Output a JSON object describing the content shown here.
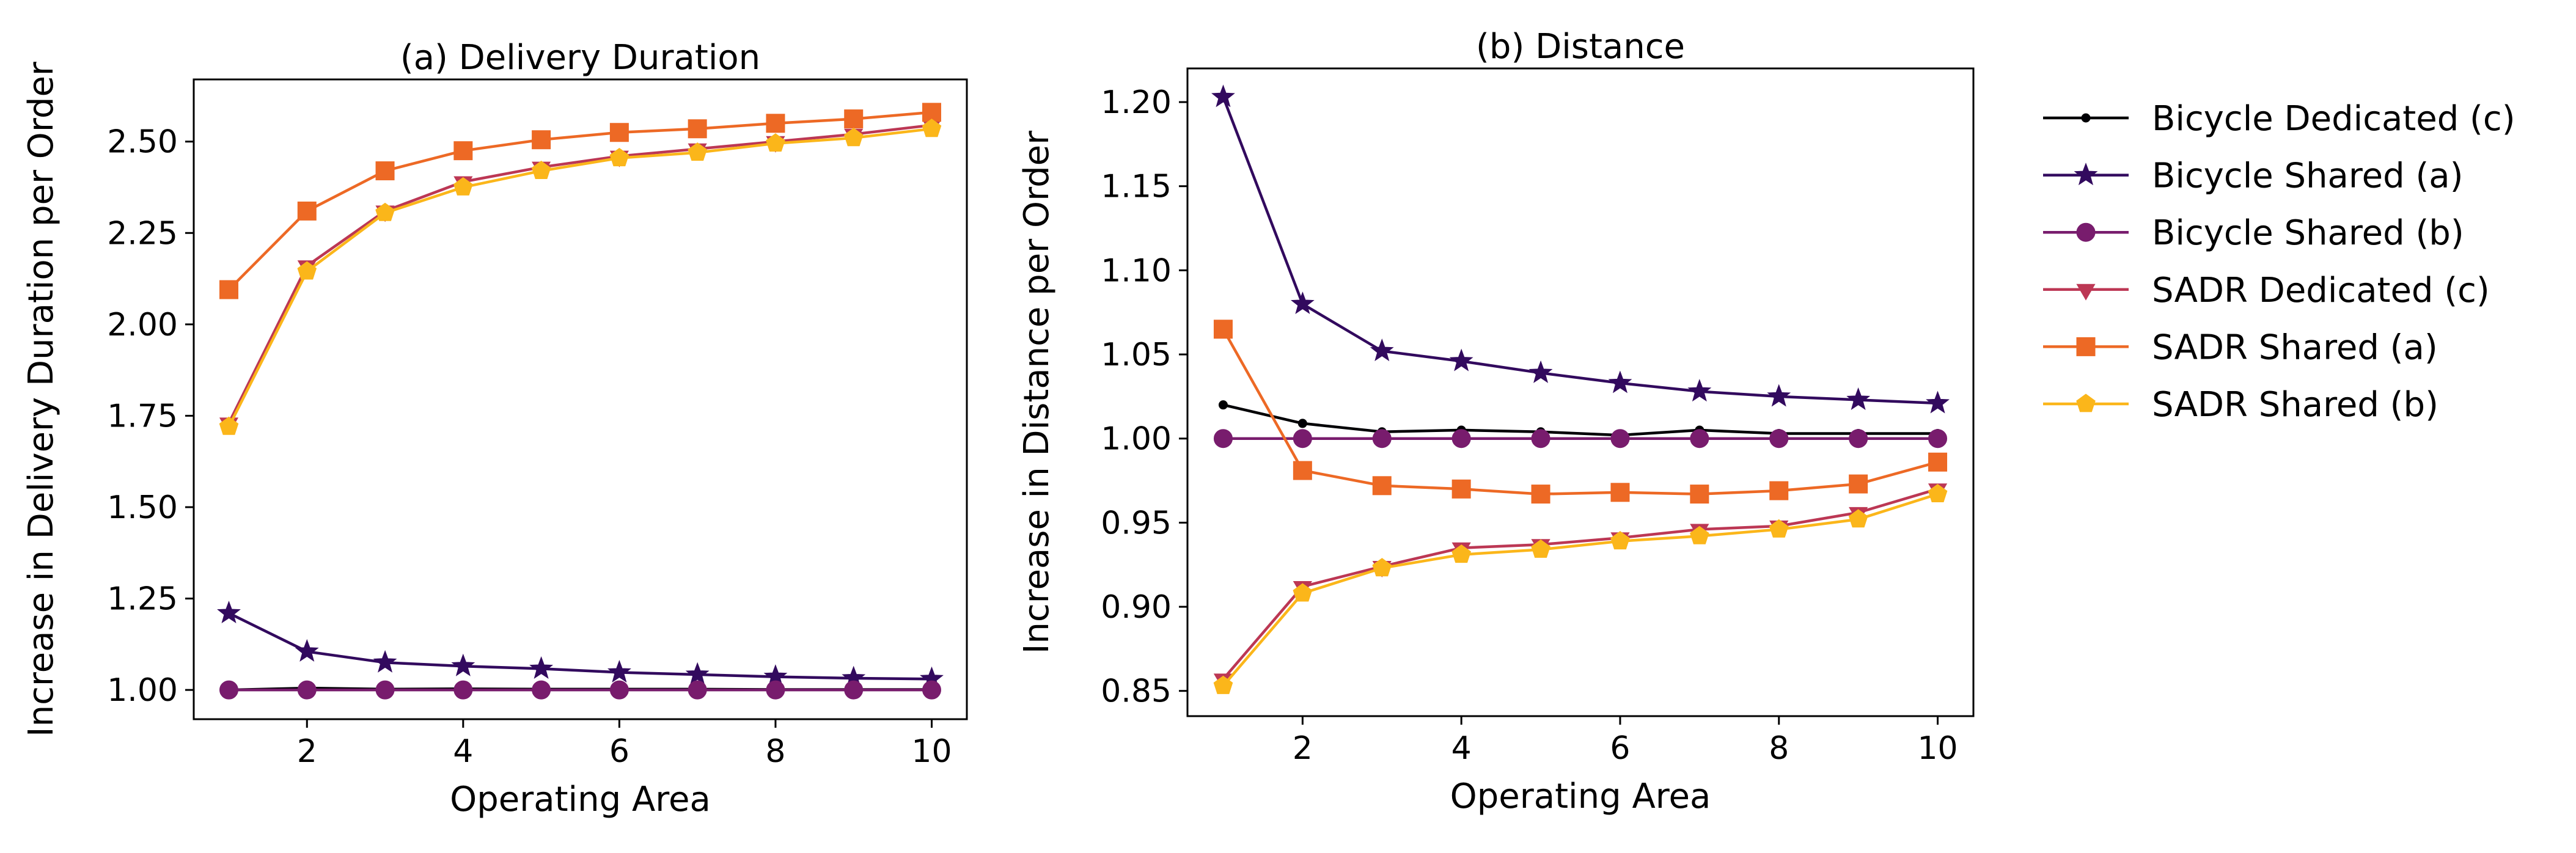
{
  "chart_data": [
    {
      "type": "line",
      "title": "(a) Delivery Duration",
      "xlabel": "Operating Area",
      "ylabel": "Increase in Delivery Duration per Order",
      "xlim": [
        0.55,
        10.45
      ],
      "ylim": [
        0.92,
        2.67
      ],
      "xticks": [
        2,
        4,
        6,
        8,
        10
      ],
      "yticks": [
        1.0,
        1.25,
        1.5,
        1.75,
        2.0,
        2.25,
        2.5
      ],
      "ytick_labels": [
        "1.00",
        "1.25",
        "1.50",
        "1.75",
        "2.00",
        "2.25",
        "2.50"
      ],
      "xtick_labels": [
        "2",
        "4",
        "6",
        "8",
        "10"
      ],
      "x": [
        1,
        2,
        3,
        4,
        5,
        6,
        7,
        8,
        9,
        10
      ],
      "series": [
        {
          "name": "Bicycle Dedicated (c)",
          "color": "#000004",
          "marker": "dot",
          "values": [
            1.0,
            1.005,
            1.002,
            1.003,
            1.002,
            1.002,
            1.002,
            1.001,
            1.001,
            1.001
          ]
        },
        {
          "name": "Bicycle Shared (a)",
          "color": "#320a5e",
          "marker": "star",
          "values": [
            1.21,
            1.105,
            1.075,
            1.065,
            1.058,
            1.048,
            1.042,
            1.036,
            1.032,
            1.03
          ]
        },
        {
          "name": "Bicycle Shared (b)",
          "color": "#781c6d",
          "marker": "circle",
          "values": [
            1.0,
            1.0,
            1.0,
            1.0,
            1.0,
            1.0,
            1.0,
            1.0,
            1.0,
            1.0
          ]
        },
        {
          "name": "SADR Dedicated (c)",
          "color": "#bc3754",
          "marker": "triangle",
          "values": [
            1.73,
            2.16,
            2.31,
            2.39,
            2.43,
            2.46,
            2.48,
            2.5,
            2.52,
            2.545
          ]
        },
        {
          "name": "SADR Shared (a)",
          "color": "#ed6925",
          "marker": "square",
          "values": [
            2.095,
            2.31,
            2.42,
            2.475,
            2.505,
            2.525,
            2.535,
            2.55,
            2.562,
            2.58
          ]
        },
        {
          "name": "SADR Shared (b)",
          "color": "#fbb61a",
          "marker": "pentagon",
          "values": [
            1.72,
            2.145,
            2.305,
            2.375,
            2.42,
            2.455,
            2.47,
            2.495,
            2.51,
            2.535
          ]
        }
      ]
    },
    {
      "type": "line",
      "title": "(b) Distance",
      "xlabel": "Operating Area",
      "ylabel": "Increase in Distance per Order",
      "xlim": [
        0.55,
        10.45
      ],
      "ylim": [
        0.835,
        1.22
      ],
      "xticks": [
        2,
        4,
        6,
        8,
        10
      ],
      "yticks": [
        0.85,
        0.9,
        0.95,
        1.0,
        1.05,
        1.1,
        1.15,
        1.2
      ],
      "ytick_labels": [
        "0.85",
        "0.90",
        "0.95",
        "1.00",
        "1.05",
        "1.10",
        "1.15",
        "1.20"
      ],
      "xtick_labels": [
        "2",
        "4",
        "6",
        "8",
        "10"
      ],
      "x": [
        1,
        2,
        3,
        4,
        5,
        6,
        7,
        8,
        9,
        10
      ],
      "series": [
        {
          "name": "Bicycle Dedicated (c)",
          "color": "#000004",
          "marker": "dot",
          "values": [
            1.02,
            1.009,
            1.004,
            1.005,
            1.004,
            1.002,
            1.005,
            1.003,
            1.003,
            1.003
          ]
        },
        {
          "name": "Bicycle Shared (a)",
          "color": "#320a5e",
          "marker": "star",
          "values": [
            1.203,
            1.08,
            1.052,
            1.046,
            1.039,
            1.033,
            1.028,
            1.025,
            1.023,
            1.021
          ]
        },
        {
          "name": "Bicycle Shared (b)",
          "color": "#781c6d",
          "marker": "circle",
          "values": [
            1.0,
            1.0,
            1.0,
            1.0,
            1.0,
            1.0,
            1.0,
            1.0,
            1.0,
            1.0
          ]
        },
        {
          "name": "SADR Dedicated (c)",
          "color": "#bc3754",
          "marker": "triangle",
          "values": [
            0.857,
            0.912,
            0.924,
            0.935,
            0.937,
            0.941,
            0.946,
            0.948,
            0.956,
            0.97
          ]
        },
        {
          "name": "SADR Shared (a)",
          "color": "#ed6925",
          "marker": "square",
          "values": [
            1.065,
            0.981,
            0.972,
            0.97,
            0.967,
            0.968,
            0.967,
            0.969,
            0.973,
            0.986
          ]
        },
        {
          "name": "SADR Shared (b)",
          "color": "#fbb61a",
          "marker": "pentagon",
          "values": [
            0.853,
            0.908,
            0.923,
            0.931,
            0.934,
            0.939,
            0.942,
            0.946,
            0.952,
            0.967
          ]
        }
      ]
    }
  ],
  "legend": {
    "placement": "right",
    "entries": [
      {
        "label": "Bicycle Dedicated (c)",
        "color": "#000004",
        "marker": "dot"
      },
      {
        "label": "Bicycle Shared (a)",
        "color": "#320a5e",
        "marker": "star"
      },
      {
        "label": "Bicycle Shared (b)",
        "color": "#781c6d",
        "marker": "circle"
      },
      {
        "label": "SADR Dedicated (c)",
        "color": "#bc3754",
        "marker": "triangle"
      },
      {
        "label": "SADR Shared (a)",
        "color": "#ed6925",
        "marker": "square"
      },
      {
        "label": "SADR Shared (b)",
        "color": "#fbb61a",
        "marker": "pentagon"
      }
    ]
  }
}
